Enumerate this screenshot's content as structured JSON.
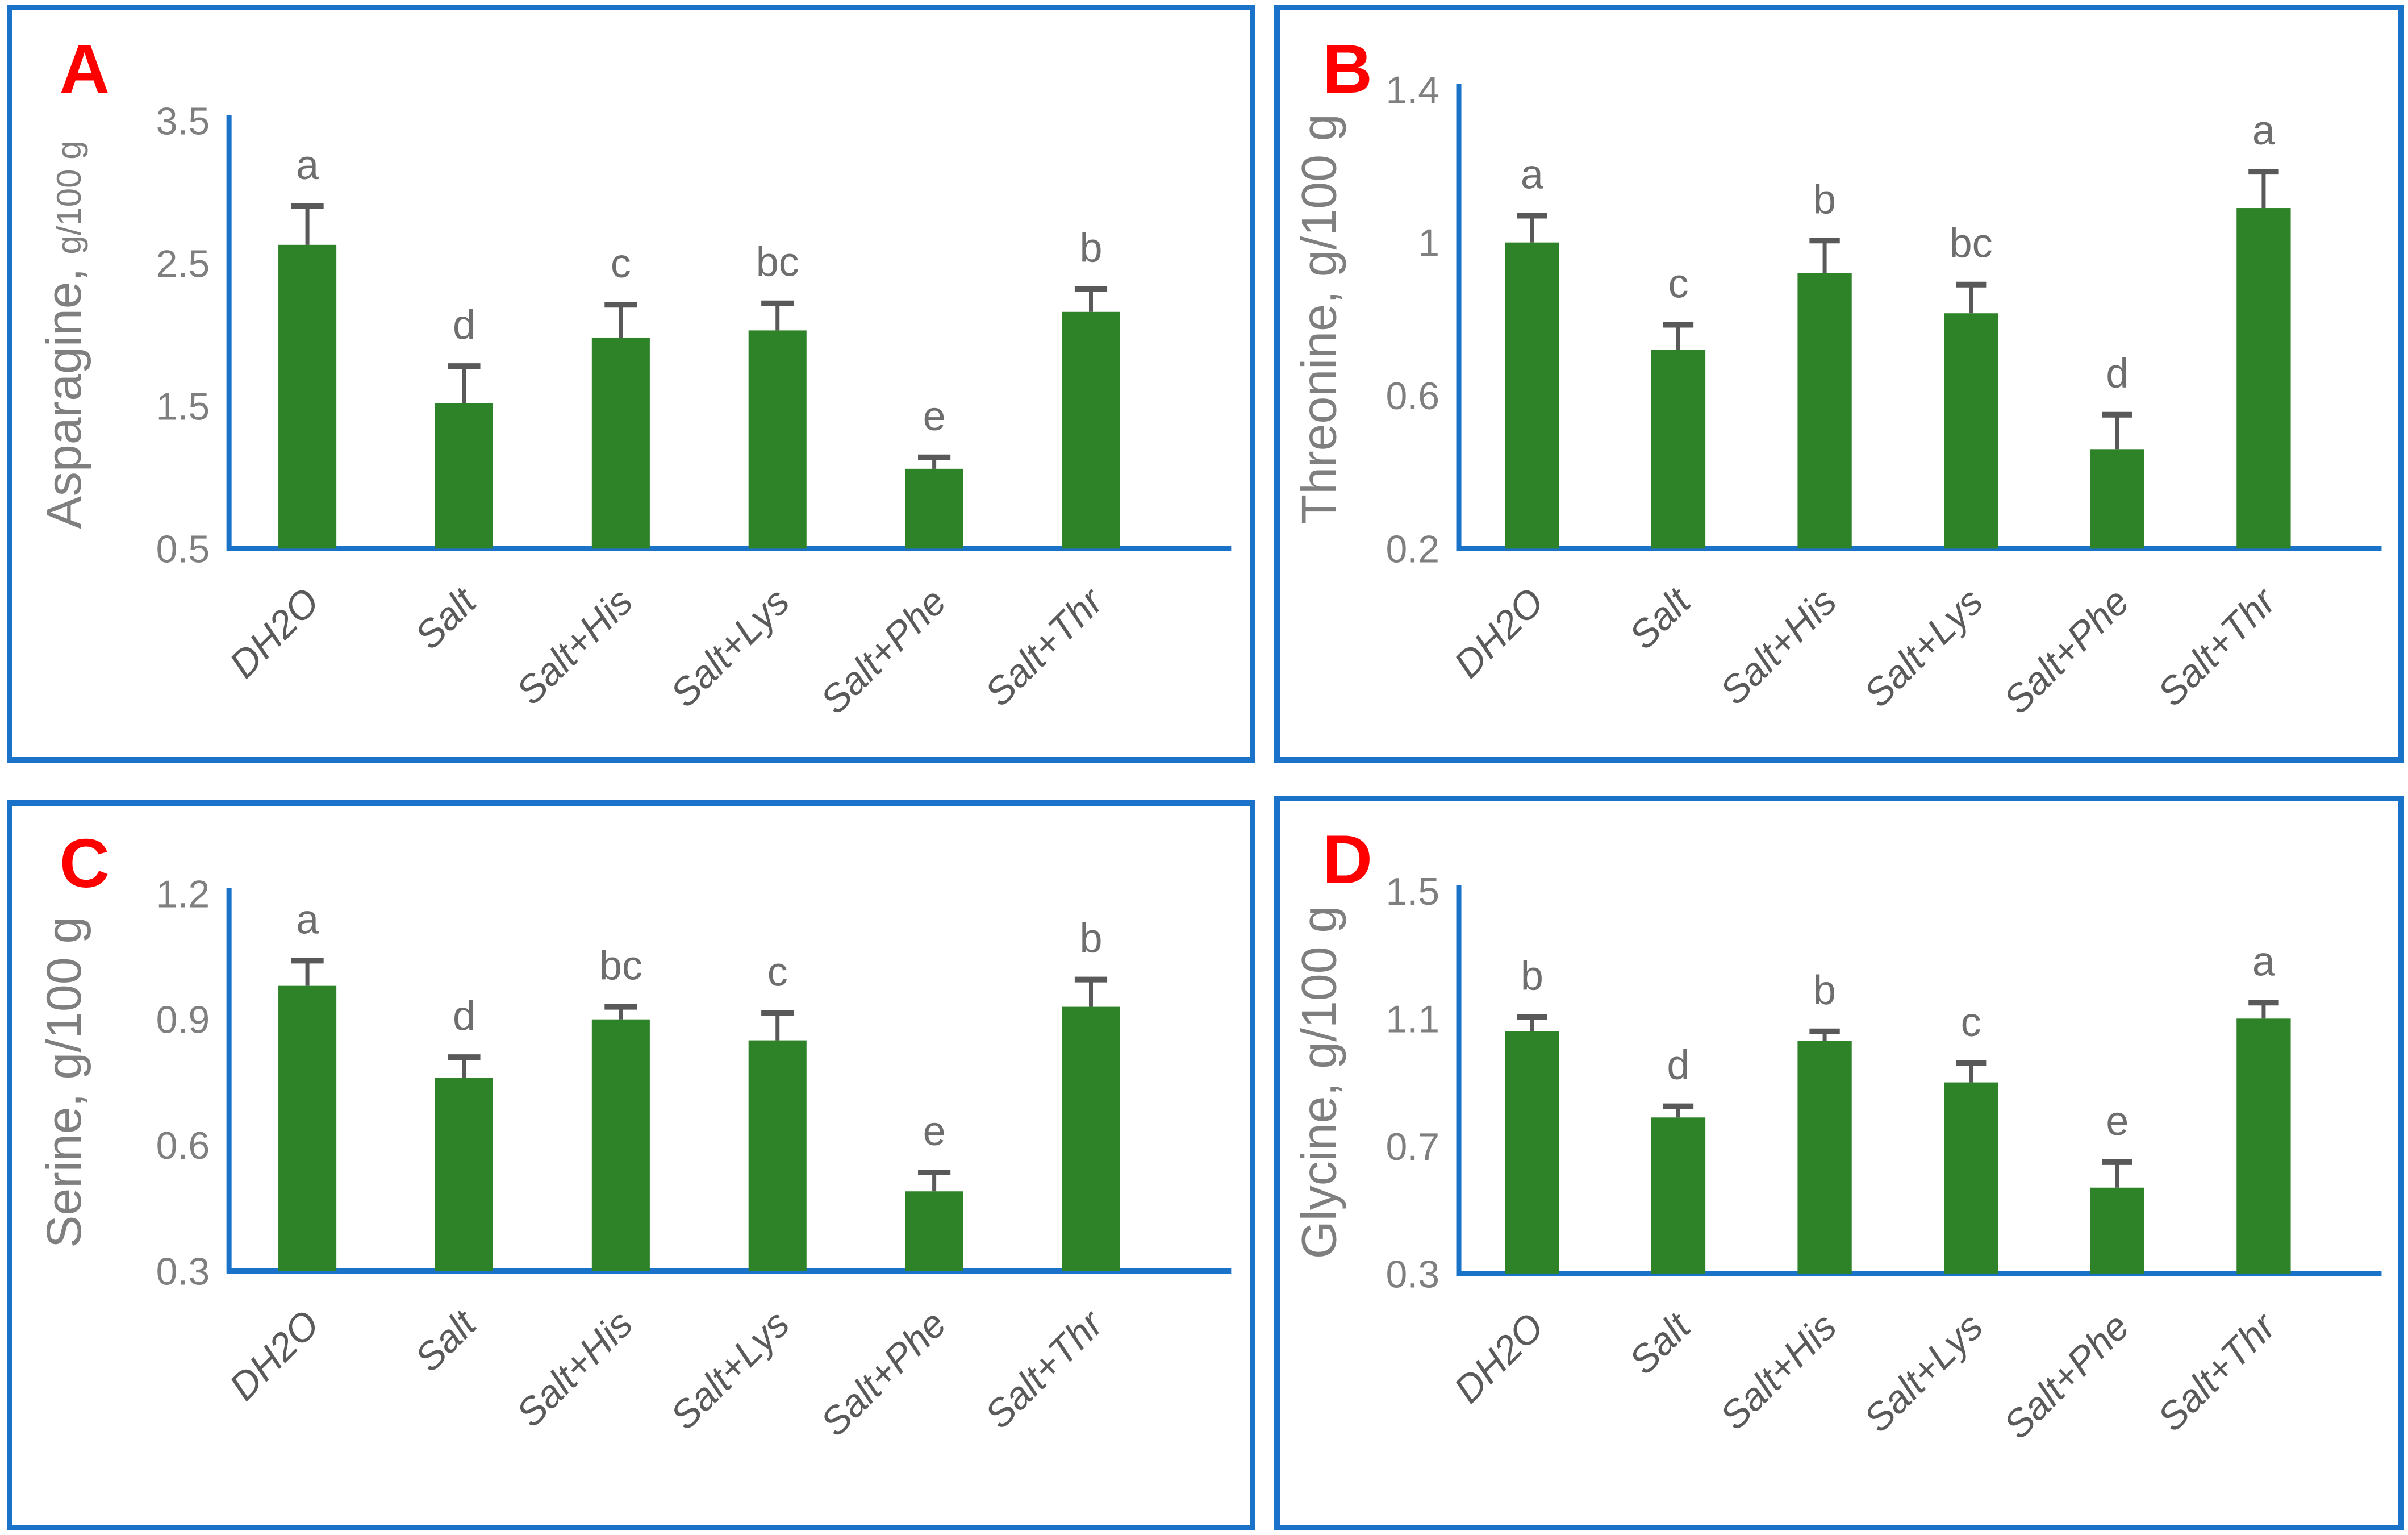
{
  "colors": {
    "bar_green": "#2E8228",
    "axis_blue": "#1A73C8",
    "border_blue": "#1A73C8",
    "tick_gray": "#7F7F7F",
    "label_gray": "#7F7F7F",
    "xlabel_gray": "#5A5A5A",
    "sig_letter_gray": "#6E6E6E",
    "error_gray": "#595959",
    "panel_letter_red": "#FF0000"
  },
  "chart_data": [
    {
      "type": "bar",
      "panel": "A",
      "title": "",
      "ylabel": "Asparagine, g/100 g",
      "ylabel_parts": [
        {
          "text": "Asparagine, ",
          "size": "large"
        },
        {
          "text": "g/100 g",
          "size": "small"
        }
      ],
      "categories": [
        "DH2O",
        "Salt",
        "Salt+His",
        "Salt+Lys",
        "Salt+Phe",
        "Salt+Thr"
      ],
      "values": [
        2.63,
        1.52,
        1.98,
        2.03,
        1.06,
        2.16
      ],
      "error_plus": [
        0.27,
        0.26,
        0.23,
        0.19,
        0.08,
        0.16
      ],
      "sig_letters": [
        "a",
        "d",
        "c",
        "bc",
        "e",
        "b"
      ],
      "ylim": [
        0.5,
        3.5
      ],
      "yticks": [
        3.5,
        2.5,
        1.5,
        0.5
      ],
      "grid": false,
      "legend": "none",
      "bar_color": "#2E8228"
    },
    {
      "type": "bar",
      "panel": "B",
      "title": "",
      "ylabel": "Threonine, g/100 g",
      "ylabel_parts": [
        {
          "text": "Threonine, g/100 g",
          "size": "large"
        }
      ],
      "categories": [
        "DH2O",
        "Salt",
        "Salt+His",
        "Salt+Lys",
        "Salt+Phe",
        "Salt+Thr"
      ],
      "values": [
        1.0,
        0.72,
        0.92,
        0.815,
        0.46,
        1.09
      ],
      "error_plus": [
        0.07,
        0.065,
        0.085,
        0.075,
        0.09,
        0.095
      ],
      "sig_letters": [
        "a",
        "c",
        "b",
        "bc",
        "d",
        "a"
      ],
      "ylim": [
        0.2,
        1.4
      ],
      "yticks": [
        1.4,
        1,
        0.6,
        0.2
      ],
      "grid": false,
      "legend": "none",
      "bar_color": "#2E8228"
    },
    {
      "type": "bar",
      "panel": "C",
      "title": "",
      "ylabel": "Serine, g/100 g",
      "ylabel_parts": [
        {
          "text": "Serine, g/100 g",
          "size": "large"
        }
      ],
      "categories": [
        "DH2O",
        "Salt",
        "Salt+His",
        "Salt+Lys",
        "Salt+Phe",
        "Salt+Thr"
      ],
      "values": [
        0.98,
        0.76,
        0.9,
        0.85,
        0.49,
        0.93
      ],
      "error_plus": [
        0.06,
        0.05,
        0.03,
        0.065,
        0.045,
        0.065
      ],
      "sig_letters": [
        "a",
        "d",
        "bc",
        "c",
        "e",
        "b"
      ],
      "ylim": [
        0.3,
        1.2
      ],
      "yticks": [
        1.2,
        0.9,
        0.6,
        0.3
      ],
      "grid": false,
      "legend": "none",
      "bar_color": "#2E8228"
    },
    {
      "type": "bar",
      "panel": "D",
      "title": "",
      "ylabel": "Glycine, g/100 g",
      "ylabel_parts": [
        {
          "text": "Glycine, g/100 g",
          "size": "large"
        }
      ],
      "categories": [
        "DH2O",
        "Salt",
        "Salt+His",
        "Salt+Lys",
        "Salt+Phe",
        "Salt+Thr"
      ],
      "values": [
        1.06,
        0.79,
        1.03,
        0.9,
        0.57,
        1.1
      ],
      "error_plus": [
        0.045,
        0.035,
        0.03,
        0.06,
        0.08,
        0.05
      ],
      "sig_letters": [
        "b",
        "d",
        "b",
        "c",
        "e",
        "a"
      ],
      "ylim": [
        0.3,
        1.5
      ],
      "yticks": [
        1.5,
        1.1,
        0.7,
        0.3
      ],
      "grid": false,
      "legend": "none",
      "bar_color": "#2E8228"
    }
  ]
}
